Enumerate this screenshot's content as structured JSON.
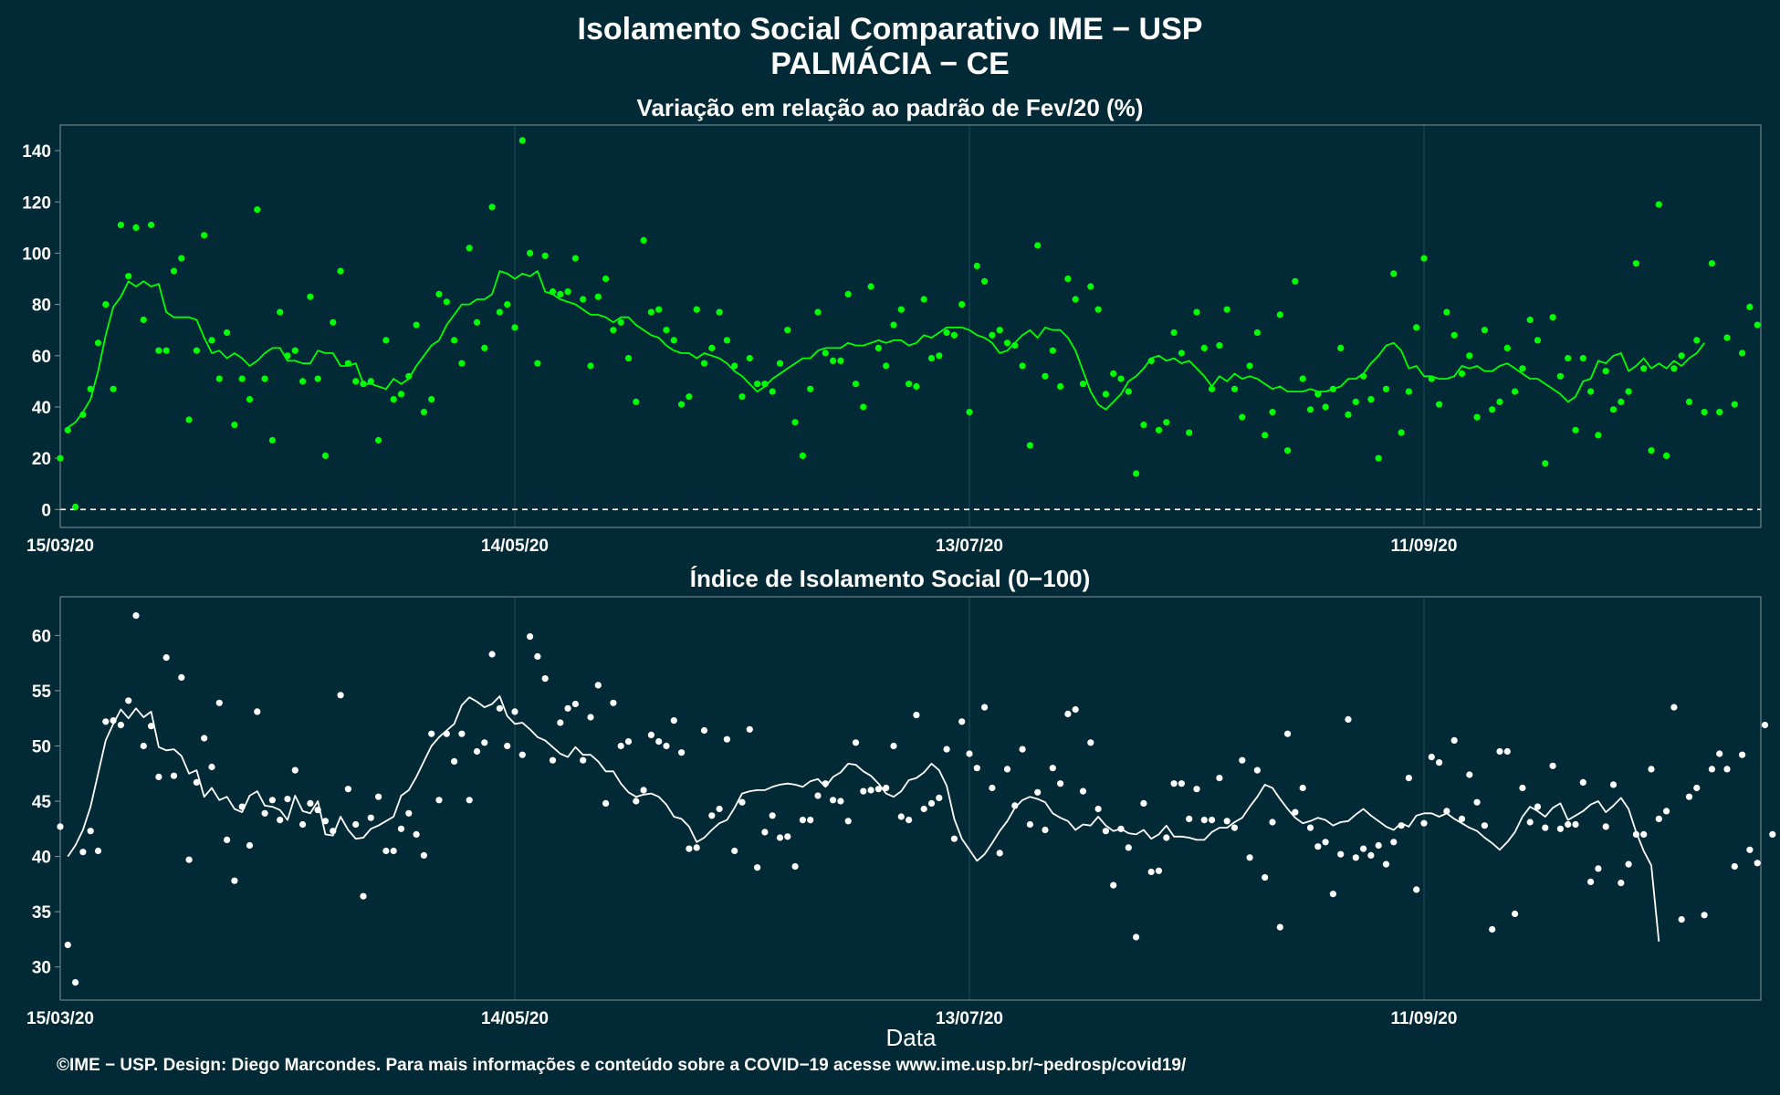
{
  "header": {
    "title": "Isolamento Social Comparativo IME − USP",
    "subtitle": "PALMÁCIA − CE"
  },
  "xlabel": "Data",
  "footer": "©IME − USP. Design: Diego Marcondes. Para mais informações e conteúdo sobre a COVID−19 acesse www.ime.usp.br/~pedrosp/covid19/",
  "colors": {
    "background": "#022a36",
    "panel_border": "#7f9499",
    "grid": "#1d4a55",
    "top_series": "#00ff00",
    "bottom_series": "#ffffff"
  },
  "chart_data": [
    {
      "type": "scatter",
      "title": "Variação em relação ao padrão de Fev/20 (%)",
      "xlabel": "",
      "ylabel": "",
      "x_start": "2020-03-15",
      "x_ticks": [
        "15/03/20",
        "14/05/20",
        "13/07/20",
        "11/09/20"
      ],
      "ylim": [
        -7,
        150
      ],
      "yticks": [
        0,
        20,
        40,
        60,
        80,
        100,
        120,
        140
      ],
      "reference_line": 0,
      "series": [
        {
          "kind": "points",
          "values": [
            20,
            31,
            1,
            37,
            47,
            65,
            80,
            47,
            111,
            91,
            110,
            74,
            111,
            62,
            62,
            93,
            98,
            35,
            62,
            107,
            66,
            51,
            69,
            33,
            51,
            43,
            117,
            51,
            27,
            77,
            60,
            62,
            50,
            83,
            51,
            21,
            73,
            93,
            57,
            50,
            49,
            50,
            27,
            66,
            43,
            45,
            52,
            72,
            38,
            43,
            84,
            81,
            66,
            57,
            102,
            73,
            63,
            118,
            77,
            80,
            71,
            144,
            100,
            57,
            99,
            85,
            84,
            85,
            98,
            82,
            56,
            83,
            90,
            70,
            73,
            59,
            42,
            105,
            77,
            78,
            70,
            66,
            41,
            44,
            78,
            57,
            63,
            77,
            66,
            56,
            44,
            59,
            49,
            49,
            46,
            57,
            70,
            34,
            21,
            47,
            77,
            61,
            58,
            58,
            84,
            49,
            40,
            87,
            63,
            56,
            72,
            78,
            49,
            48,
            82,
            59,
            60,
            69,
            68,
            80,
            38,
            95,
            89,
            68,
            70,
            65,
            64,
            56,
            25,
            103,
            52,
            62,
            48,
            90,
            82,
            49,
            87,
            78,
            45,
            53,
            51,
            46,
            14,
            33,
            58,
            31,
            34,
            69,
            61,
            30,
            77,
            63,
            47,
            64,
            78,
            47,
            36,
            56,
            69,
            29,
            38,
            76,
            23,
            89,
            51,
            39,
            45,
            40,
            47,
            63,
            37,
            42,
            52,
            43,
            20,
            47,
            92,
            30,
            46,
            71,
            98,
            51,
            41,
            77,
            68,
            53,
            60,
            36,
            70,
            39,
            42,
            63,
            46,
            55,
            74,
            66,
            18,
            75,
            52,
            59,
            31,
            59,
            46,
            29,
            54,
            39,
            42,
            46,
            96,
            55,
            23,
            119,
            21,
            55,
            60,
            42,
            66,
            38,
            96,
            38,
            67,
            41,
            61,
            79,
            72
          ]
        },
        {
          "kind": "moving_average",
          "values": [
            32,
            34,
            38,
            43,
            54,
            68,
            79,
            83,
            89,
            87,
            89,
            87,
            88,
            77,
            75,
            75,
            75,
            74,
            67,
            61,
            62,
            59,
            61,
            59,
            56,
            58,
            61,
            63,
            63,
            58,
            58,
            57,
            57,
            62,
            61,
            61,
            56,
            56,
            57,
            49,
            49,
            48,
            47,
            51,
            49,
            51,
            56,
            60,
            64,
            66,
            72,
            76,
            80,
            80,
            82,
            82,
            84,
            93,
            92,
            90,
            92,
            91,
            93,
            85,
            84,
            82,
            81,
            80,
            78,
            76,
            76,
            75,
            73,
            75,
            75,
            72,
            70,
            68,
            67,
            64,
            62,
            61,
            61,
            59,
            61,
            60,
            59,
            57,
            54,
            52,
            49,
            46,
            48,
            51,
            53,
            55,
            57,
            59,
            59,
            62,
            63,
            63,
            63,
            65,
            64,
            64,
            65,
            66,
            65,
            66,
            66,
            64,
            65,
            68,
            67,
            69,
            71,
            71,
            71,
            70,
            68,
            67,
            65,
            61,
            62,
            65,
            68,
            70,
            67,
            71,
            70,
            70,
            67,
            62,
            54,
            46,
            41,
            39,
            42,
            45,
            50,
            52,
            55,
            59,
            60,
            58,
            59,
            57,
            58,
            55,
            52,
            48,
            52,
            50,
            53,
            51,
            52,
            51,
            49,
            47,
            48,
            46,
            46,
            46,
            47,
            46,
            46,
            47,
            48,
            51,
            51,
            53,
            57,
            60,
            64,
            65,
            62,
            55,
            56,
            52,
            52,
            51,
            51,
            52,
            56,
            55,
            56,
            54,
            54,
            56,
            57,
            55,
            53,
            51,
            51,
            49,
            47,
            45,
            42,
            44,
            50,
            51,
            58,
            57,
            60,
            61,
            54,
            56,
            59,
            55,
            57,
            55,
            58,
            56,
            59,
            61,
            65
          ]
        }
      ]
    },
    {
      "type": "scatter",
      "title": "Índice de Isolamento Social (0−100)",
      "xlabel": "Data",
      "ylabel": "",
      "x_start": "2020-03-15",
      "x_ticks": [
        "15/03/20",
        "14/05/20",
        "13/07/20",
        "11/09/20"
      ],
      "ylim": [
        27,
        63.5
      ],
      "yticks": [
        30,
        35,
        40,
        45,
        50,
        55,
        60
      ],
      "series": [
        {
          "kind": "points",
          "values": [
            42.7,
            32.0,
            28.6,
            40.4,
            42.3,
            40.5,
            52.2,
            52.3,
            51.9,
            54.1,
            61.8,
            50.0,
            51.8,
            47.2,
            58.0,
            47.3,
            56.2,
            39.7,
            46.7,
            50.7,
            48.1,
            53.9,
            41.5,
            37.8,
            44.5,
            41.0,
            53.1,
            43.9,
            45.1,
            43.3,
            45.2,
            47.8,
            42.9,
            44.8,
            44.2,
            43.2,
            42.3,
            54.6,
            46.1,
            42.9,
            36.4,
            43.5,
            45.4,
            40.5,
            40.5,
            42.5,
            43.9,
            42.0,
            40.1,
            51.1,
            45.1,
            51.1,
            48.6,
            51.1,
            45.1,
            49.5,
            50.3,
            58.3,
            53.4,
            50.0,
            53.1,
            49.2,
            59.9,
            58.1,
            56.1,
            48.7,
            52.1,
            53.4,
            53.8,
            48.7,
            52.6,
            55.5,
            44.8,
            53.9,
            50.0,
            50.4,
            45.0,
            46.0,
            51.0,
            50.4,
            50.0,
            52.3,
            49.4,
            40.7,
            40.8,
            51.4,
            43.7,
            44.3,
            50.6,
            40.5,
            44.9,
            51.5,
            39.0,
            42.2,
            43.7,
            41.7,
            41.8,
            39.1,
            43.3,
            43.3,
            45.5,
            46.6,
            45.1,
            45.0,
            43.2,
            50.3,
            45.9,
            46.0,
            46.1,
            46.2,
            50.0,
            43.6,
            43.3,
            52.8,
            44.3,
            44.8,
            45.3,
            49.7,
            41.6,
            52.2,
            49.3,
            48.0,
            53.5,
            46.2,
            40.3,
            47.9,
            44.6,
            49.7,
            42.9,
            45.8,
            42.4,
            48.0,
            46.6,
            52.9,
            53.3,
            45.9,
            50.3,
            44.3,
            42.3,
            37.4,
            42.5,
            40.8,
            32.7,
            44.8,
            38.6,
            38.7,
            41.7,
            46.6,
            46.6,
            43.4,
            46.1,
            43.3,
            43.3,
            47.1,
            43.2,
            42.6,
            48.7,
            39.9,
            47.8,
            38.1,
            43.1,
            33.6,
            51.1,
            44.0,
            46.2,
            42.6,
            40.9,
            41.3,
            36.6,
            40.2,
            52.4,
            39.9,
            40.7,
            40.1,
            41.0,
            39.3,
            41.3,
            42.8,
            47.1,
            37.0,
            43.0,
            49.0,
            48.5,
            44.1,
            50.5,
            43.4,
            47.4,
            44.9,
            42.8,
            33.4,
            49.5,
            49.5,
            34.8,
            46.2,
            43.1,
            44.5,
            42.6,
            48.2,
            42.5,
            42.9,
            42.9,
            46.7,
            37.7,
            38.9,
            42.7,
            46.5,
            37.6,
            39.3,
            42.0,
            42.0,
            47.9,
            43.4,
            44.1,
            53.5,
            34.3,
            45.4,
            46.2,
            34.7,
            47.9,
            49.3,
            47.9,
            39.1,
            49.2,
            40.6,
            39.4,
            51.9,
            42.0
          ]
        },
        {
          "kind": "moving_average",
          "values": [
            40.0,
            41.0,
            42.4,
            44.5,
            47.5,
            50.5,
            52.0,
            53.3,
            52.5,
            53.4,
            52.6,
            53.1,
            49.9,
            49.6,
            49.7,
            49.1,
            47.5,
            47.8,
            45.4,
            46.2,
            45.1,
            45.4,
            44.3,
            44.0,
            45.5,
            45.9,
            44.6,
            44.5,
            44.2,
            43.3,
            45.5,
            44.1,
            43.9,
            45.0,
            42.0,
            41.9,
            43.6,
            42.4,
            41.6,
            41.7,
            42.5,
            42.8,
            43.2,
            43.6,
            45.5,
            46.0,
            47.2,
            48.6,
            50.0,
            50.8,
            51.4,
            52.0,
            53.7,
            54.4,
            54.0,
            53.5,
            53.8,
            54.5,
            52.7,
            52.0,
            52.1,
            51.5,
            50.8,
            50.5,
            49.9,
            49.3,
            49.0,
            49.9,
            49.2,
            49.2,
            48.6,
            47.7,
            47.7,
            46.6,
            45.8,
            45.4,
            45.6,
            45.7,
            45.4,
            44.7,
            43.6,
            43.4,
            42.7,
            41.3,
            41.7,
            42.4,
            43.0,
            43.3,
            44.4,
            45.7,
            45.9,
            46.0,
            46.0,
            46.3,
            46.5,
            46.6,
            46.5,
            46.3,
            46.8,
            47.0,
            46.3,
            47.2,
            47.6,
            48.4,
            48.3,
            47.7,
            47.3,
            46.6,
            45.7,
            45.4,
            45.9,
            46.9,
            47.1,
            47.6,
            48.4,
            47.8,
            46.4,
            43.4,
            41.6,
            40.6,
            39.6,
            40.2,
            41.2,
            42.3,
            43.2,
            44.4,
            45.1,
            45.4,
            45.2,
            44.9,
            43.9,
            43.5,
            43.2,
            42.4,
            42.9,
            42.8,
            43.6,
            42.8,
            42.3,
            42.5,
            42.1,
            42.0,
            42.4,
            41.6,
            42.0,
            42.8,
            41.8,
            41.8,
            41.7,
            41.5,
            41.5,
            42.2,
            42.6,
            42.6,
            43.1,
            43.5,
            44.5,
            45.4,
            46.5,
            46.2,
            45.2,
            44.3,
            43.5,
            43.0,
            43.2,
            43.5,
            43.3,
            42.8,
            43.1,
            43.2,
            43.8,
            44.3,
            43.7,
            43.2,
            42.7,
            42.4,
            43.0,
            42.7,
            43.7,
            43.9,
            43.9,
            43.6,
            43.9,
            43.4,
            43.0,
            42.6,
            42.3,
            41.7,
            41.2,
            40.6,
            41.3,
            42.2,
            43.6,
            44.5,
            44.1,
            43.6,
            44.4,
            44.8,
            43.3,
            43.7,
            44.1,
            44.7,
            45.0,
            44.0,
            44.6,
            45.3,
            44.3,
            42.2,
            40.5,
            39.2,
            32.3
          ]
        }
      ]
    }
  ]
}
